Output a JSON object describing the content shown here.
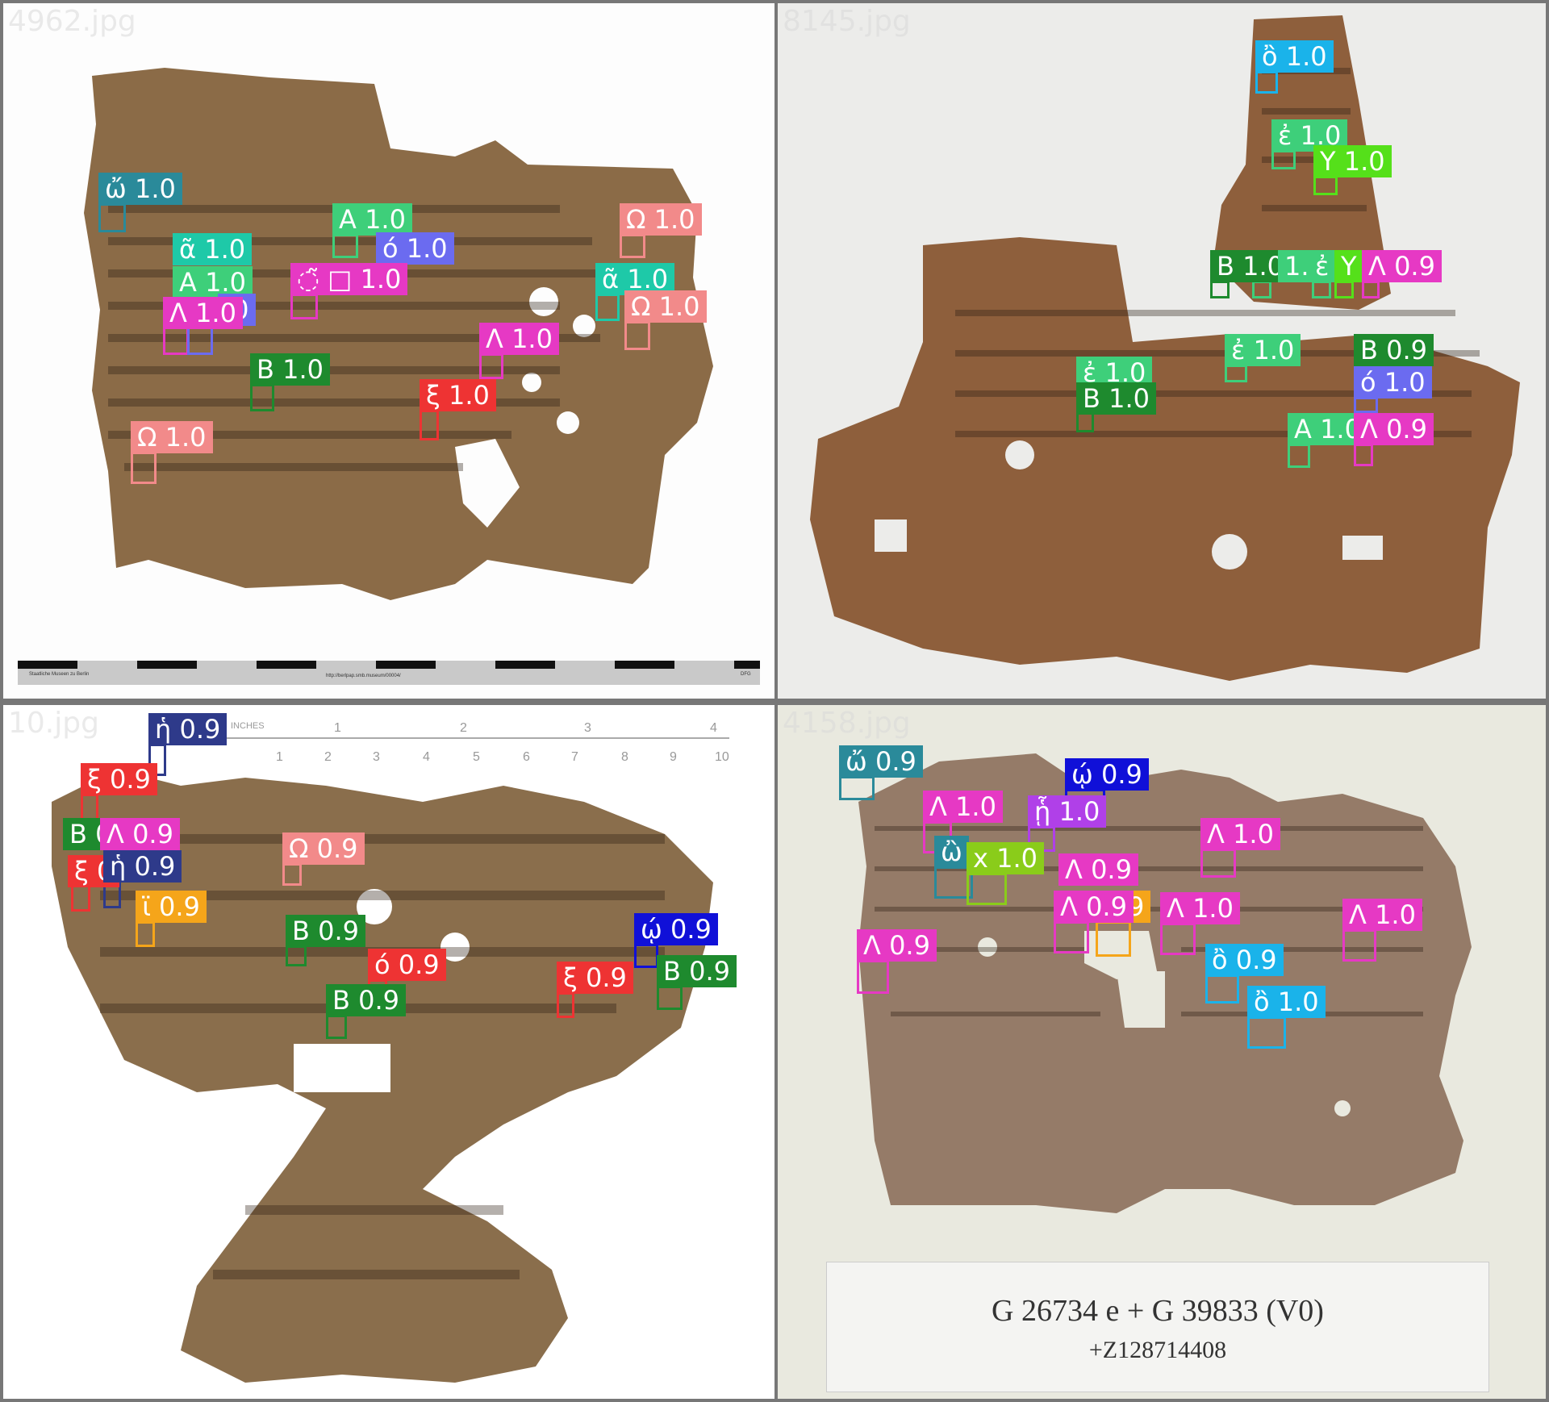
{
  "colors": {
    "frame": "#777777",
    "paper": "#8a6a46",
    "papyrus_dark": "#7d5a3a"
  },
  "panels": [
    {
      "name": "4962.jpg",
      "footer_url": "http://berlpap.smb.museum/00004/",
      "footer_left": "Staatliche Museen zu Berlin",
      "footer_right": "DFG",
      "detections": [
        {
          "label": "ὤ 1.0",
          "color": "#2a8a9a"
        },
        {
          "label": "ᾶ 1.0",
          "color": "#1ec9a8"
        },
        {
          "label": "Α 1.0",
          "color": "#3ecf7a"
        },
        {
          "label": "Λ 1.0",
          "color": "#e639c4"
        },
        {
          "label": ".0",
          "color": "#6b6bf0"
        },
        {
          "label": "Β 1.0",
          "color": "#1e8a2e"
        },
        {
          "label": "Ω 1.0",
          "color": "#f28a8a"
        },
        {
          "label": "Α 1.0",
          "color": "#3ecf7a"
        },
        {
          "label": "ό 1.0",
          "color": "#6b6bf0"
        },
        {
          "label": "◌̃ □ 1.0",
          "color": "#e639c4"
        },
        {
          "label": "Λ 1.0",
          "color": "#e639c4"
        },
        {
          "label": "ξ 1.0",
          "color": "#ee3333"
        },
        {
          "label": "Ω 1.0",
          "color": "#f28a8a"
        },
        {
          "label": "ᾶ 1.0",
          "color": "#1ec9a8"
        },
        {
          "label": "Ω 1.0",
          "color": "#f28a8a"
        }
      ]
    },
    {
      "name": "8145.jpg",
      "detections": [
        {
          "label": "ὂ 1.0",
          "color": "#1ab3ea"
        },
        {
          "label": "ἐ 1.0",
          "color": "#3ecf7a"
        },
        {
          "label": "Υ 1.0",
          "color": "#55e01a"
        },
        {
          "label": "Β 1.0",
          "color": "#1e8a2e"
        },
        {
          "label": "1.0",
          "color": "#3ecf7a"
        },
        {
          "label": "ἐ",
          "color": "#3ecf7a"
        },
        {
          "label": "Υ",
          "color": "#55e01a"
        },
        {
          "label": "Λ 0.9",
          "color": "#e639c4"
        },
        {
          "label": "ἐ 1.0",
          "color": "#3ecf7a"
        },
        {
          "label": "ἐ 1.0",
          "color": "#3ecf7a"
        },
        {
          "label": "Β 1.0",
          "color": "#1e8a2e"
        },
        {
          "label": "Β 0.9",
          "color": "#1e8a2e"
        },
        {
          "label": "ό 1.0",
          "color": "#6b6bf0"
        },
        {
          "label": "Α 1.0",
          "color": "#3ecf7a"
        },
        {
          "label": "Λ 0.9",
          "color": "#e639c4"
        }
      ]
    },
    {
      "name": "10.jpg",
      "ruler": {
        "unit": "INCHES",
        "inch": [
          "1",
          "2",
          "3",
          "4"
        ],
        "cm": [
          "1",
          "2",
          "3",
          "4",
          "5",
          "6",
          "7",
          "8",
          "9",
          "10"
        ]
      },
      "detections": [
        {
          "label": "ἡ 0.9",
          "color": "#2e3a8a"
        },
        {
          "label": "ξ 0.9",
          "color": "#ee3333"
        },
        {
          "label": "Β 0",
          "color": "#1e8a2e"
        },
        {
          "label": "Λ 0.9",
          "color": "#e639c4"
        },
        {
          "label": "ξ 0",
          "color": "#ee3333"
        },
        {
          "label": "ἡ 0.9",
          "color": "#2e3a8a"
        },
        {
          "label": "ϊ 0.9",
          "color": "#f5a51a"
        },
        {
          "label": "Ω 0.9",
          "color": "#f28a8a"
        },
        {
          "label": "Β 0.9",
          "color": "#1e8a2e"
        },
        {
          "label": "ό 0.9",
          "color": "#ee3333"
        },
        {
          "label": "Β 0.9",
          "color": "#1e8a2e"
        },
        {
          "label": "ξ 0.9",
          "color": "#ee3333"
        },
        {
          "label": "ῴ 0.9",
          "color": "#1010d8"
        },
        {
          "label": "Β 0.9",
          "color": "#1e8a2e"
        }
      ]
    },
    {
      "name": "4158.jpg",
      "card": {
        "title": "G 26734 e + G 39833 (V0)",
        "subtitle": "+Z128714408"
      },
      "detections": [
        {
          "label": "ὤ 0.9",
          "color": "#2a8a9a"
        },
        {
          "label": "Λ 1.0",
          "color": "#e639c4"
        },
        {
          "label": "ᾗ 1.0",
          "color": "#b040e8"
        },
        {
          "label": "ῴ 0.9",
          "color": "#1010d8"
        },
        {
          "label": "ὢ",
          "color": "#2a8a9a"
        },
        {
          "label": "x 1.0",
          "color": "#8acc1a"
        },
        {
          "label": "Λ 0.9",
          "color": "#e639c4"
        },
        {
          "label": "Λ 0.9",
          "color": "#e639c4"
        },
        {
          "label": "9",
          "color": "#f5a51a"
        },
        {
          "label": "Λ 1.0",
          "color": "#e639c4"
        },
        {
          "label": "Λ 1.0",
          "color": "#e639c4"
        },
        {
          "label": "Λ 1.0",
          "color": "#e639c4"
        },
        {
          "label": "Λ 0.9",
          "color": "#e639c4"
        },
        {
          "label": "ὂ 0.9",
          "color": "#1ab3ea"
        },
        {
          "label": "ὂ 1.0",
          "color": "#1ab3ea"
        }
      ]
    }
  ]
}
